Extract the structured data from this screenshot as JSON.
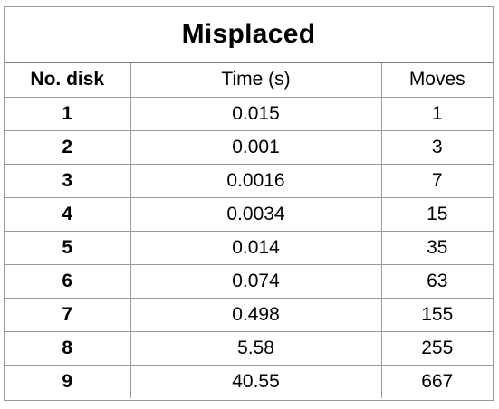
{
  "title": "Misplaced",
  "headers": [
    "No. disk",
    "Time (s)",
    "Moves"
  ],
  "rows": [
    [
      "1",
      "0.015",
      "1"
    ],
    [
      "2",
      "0.001",
      "3"
    ],
    [
      "3",
      "0.0016",
      "7"
    ],
    [
      "4",
      "0.0034",
      "15"
    ],
    [
      "5",
      "0.014",
      "35"
    ],
    [
      "6",
      "0.074",
      "63"
    ],
    [
      "7",
      "0.498",
      "155"
    ],
    [
      "8",
      "5.58",
      "255"
    ],
    [
      "9",
      "40.55",
      "667"
    ]
  ]
}
